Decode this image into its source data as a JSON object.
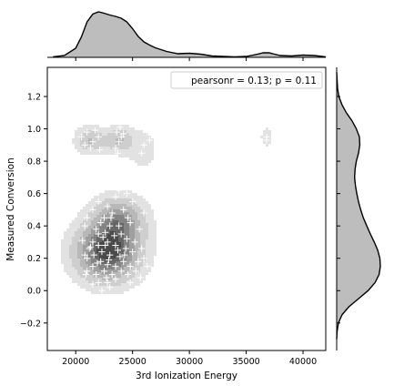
{
  "chart_data": {
    "type": "jointplot-kde",
    "xlabel": "3rd Ionization Energy",
    "ylabel": "Measured Conversion",
    "xlim": [
      17500,
      42000
    ],
    "ylim": [
      -0.37,
      1.38
    ],
    "xticks": [
      20000,
      25000,
      30000,
      35000,
      40000
    ],
    "yticks": [
      -0.2,
      0.0,
      0.2,
      0.4,
      0.6,
      0.8,
      1.0,
      1.2
    ],
    "legend": {
      "text": "pearsonr = 0.13; p = 0.11",
      "placement": "top-right"
    },
    "colors": {
      "kde_fill": "#bdbdbd",
      "kde_line": "#000000",
      "points": "#ffffff",
      "axis": "#000000"
    },
    "kde_components": [
      {
        "mx": 22800,
        "my": 0.24,
        "sx": 1700,
        "sy": 0.11,
        "w": 1.0
      },
      {
        "mx": 23800,
        "my": 0.43,
        "sx": 1400,
        "sy": 0.09,
        "w": 0.55
      },
      {
        "mx": 21300,
        "my": 0.93,
        "sx": 800,
        "sy": 0.05,
        "w": 0.32
      },
      {
        "mx": 23800,
        "my": 0.93,
        "sx": 800,
        "sy": 0.05,
        "w": 0.32
      },
      {
        "mx": 25900,
        "my": 0.87,
        "sx": 900,
        "sy": 0.09,
        "w": 0.1
      },
      {
        "mx": 36800,
        "my": 0.95,
        "sx": 350,
        "sy": 0.04,
        "w": 0.12
      }
    ],
    "x_marginal": {
      "x": [
        18000,
        19000,
        20000,
        20500,
        21000,
        21500,
        22000,
        22500,
        23000,
        23500,
        24000,
        24500,
        25000,
        25500,
        26000,
        26500,
        27000,
        28000,
        29000,
        30000,
        31000,
        32000,
        33000,
        34000,
        35000,
        36000,
        36500,
        37000,
        37500,
        38000,
        39000,
        40000,
        41000,
        42000
      ],
      "density": [
        0.01,
        0.04,
        0.2,
        0.45,
        0.78,
        0.95,
        1.0,
        0.97,
        0.93,
        0.9,
        0.86,
        0.78,
        0.63,
        0.46,
        0.34,
        0.27,
        0.21,
        0.13,
        0.08,
        0.09,
        0.07,
        0.03,
        0.02,
        0.01,
        0.02,
        0.07,
        0.1,
        0.1,
        0.07,
        0.04,
        0.03,
        0.05,
        0.04,
        0.01
      ]
    },
    "y_marginal": {
      "y": [
        -0.3,
        -0.25,
        -0.2,
        -0.15,
        -0.1,
        -0.05,
        0.0,
        0.05,
        0.1,
        0.15,
        0.2,
        0.25,
        0.3,
        0.35,
        0.4,
        0.45,
        0.5,
        0.55,
        0.6,
        0.65,
        0.7,
        0.75,
        0.8,
        0.85,
        0.9,
        0.95,
        1.0,
        1.05,
        1.1,
        1.15,
        1.2,
        1.25,
        1.3,
        1.35
      ],
      "density": [
        0.0,
        0.01,
        0.04,
        0.12,
        0.28,
        0.5,
        0.72,
        0.88,
        0.97,
        1.0,
        0.99,
        0.94,
        0.86,
        0.77,
        0.69,
        0.61,
        0.55,
        0.5,
        0.46,
        0.43,
        0.41,
        0.42,
        0.45,
        0.5,
        0.53,
        0.52,
        0.45,
        0.35,
        0.22,
        0.12,
        0.05,
        0.02,
        0.01,
        0.0
      ]
    },
    "points": [
      [
        20500,
        0.95
      ],
      [
        21000,
        0.98
      ],
      [
        21300,
        0.88
      ],
      [
        21500,
        0.92
      ],
      [
        21800,
        0.78
      ],
      [
        22000,
        0.95
      ],
      [
        21200,
        0.82
      ],
      [
        21700,
        0.99
      ],
      [
        22100,
        0.87
      ],
      [
        20800,
        0.9
      ],
      [
        23600,
        0.98
      ],
      [
        23800,
        0.92
      ],
      [
        24000,
        0.95
      ],
      [
        23500,
        0.88
      ],
      [
        24200,
        0.97
      ],
      [
        23700,
        0.85
      ],
      [
        23900,
        1.01
      ],
      [
        23600,
        0.79
      ],
      [
        23800,
        0.75
      ],
      [
        26300,
        0.98
      ],
      [
        26000,
        0.9
      ],
      [
        25800,
        0.85
      ],
      [
        26500,
        0.93
      ],
      [
        25500,
        0.72
      ],
      [
        25900,
        0.65
      ],
      [
        36800,
        0.95
      ],
      [
        36800,
        0.93
      ],
      [
        22000,
        0.55
      ],
      [
        23500,
        0.58
      ],
      [
        24500,
        0.6
      ],
      [
        25000,
        0.55
      ],
      [
        23800,
        0.62
      ],
      [
        22800,
        0.52
      ],
      [
        24200,
        0.5
      ],
      [
        21500,
        0.5
      ],
      [
        23200,
        0.48
      ],
      [
        22500,
        0.45
      ],
      [
        21000,
        0.45
      ],
      [
        22200,
        0.42
      ],
      [
        23000,
        0.4
      ],
      [
        23800,
        0.4
      ],
      [
        24800,
        0.42
      ],
      [
        25600,
        0.38
      ],
      [
        26000,
        0.48
      ],
      [
        21800,
        0.38
      ],
      [
        20800,
        0.4
      ],
      [
        22600,
        0.36
      ],
      [
        24000,
        0.35
      ],
      [
        24500,
        0.32
      ],
      [
        25200,
        0.3
      ],
      [
        21500,
        0.3
      ],
      [
        22000,
        0.28
      ],
      [
        22800,
        0.3
      ],
      [
        23500,
        0.28
      ],
      [
        21200,
        0.26
      ],
      [
        20800,
        0.22
      ],
      [
        21000,
        0.2
      ],
      [
        21600,
        0.22
      ],
      [
        22300,
        0.24
      ],
      [
        23000,
        0.22
      ],
      [
        23700,
        0.25
      ],
      [
        24300,
        0.22
      ],
      [
        25000,
        0.24
      ],
      [
        25500,
        0.18
      ],
      [
        26000,
        0.2
      ],
      [
        26300,
        0.15
      ],
      [
        24800,
        0.15
      ],
      [
        24200,
        0.18
      ],
      [
        23500,
        0.15
      ],
      [
        22800,
        0.16
      ],
      [
        22200,
        0.18
      ],
      [
        21500,
        0.15
      ],
      [
        21000,
        0.12
      ],
      [
        21800,
        0.1
      ],
      [
        22500,
        0.12
      ],
      [
        23200,
        0.1
      ],
      [
        24000,
        0.12
      ],
      [
        24600,
        0.1
      ],
      [
        25300,
        0.12
      ],
      [
        22000,
        0.05
      ],
      [
        22800,
        0.05
      ],
      [
        23500,
        0.07
      ],
      [
        21500,
        0.04
      ],
      [
        23000,
        0.02
      ],
      [
        22300,
        0.0
      ],
      [
        22600,
        0.28
      ],
      [
        21300,
        0.27
      ],
      [
        23900,
        0.21
      ],
      [
        22400,
        0.33
      ],
      [
        23400,
        0.34
      ],
      [
        20600,
        0.31
      ],
      [
        25800,
        0.26
      ],
      [
        22900,
        0.19
      ],
      [
        21900,
        0.17
      ],
      [
        24400,
        0.26
      ],
      [
        22000,
        0.35
      ],
      [
        23100,
        0.45
      ],
      [
        21700,
        0.62
      ],
      [
        24600,
        0.45
      ],
      [
        20900,
        0.1
      ],
      [
        25700,
        0.08
      ],
      [
        22700,
        0.08
      ],
      [
        24800,
        0.05
      ]
    ]
  }
}
